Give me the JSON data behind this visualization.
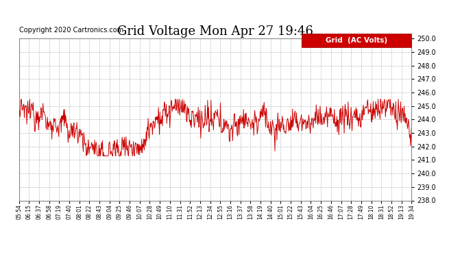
{
  "title": "Grid Voltage Mon Apr 27 19:46",
  "copyright": "Copyright 2020 Cartronics.com",
  "legend_label": "Grid  (AC Volts)",
  "line_color": "#cc0000",
  "ylim": [
    238.0,
    250.0
  ],
  "yticks": [
    238.0,
    239.0,
    240.0,
    241.0,
    242.0,
    243.0,
    244.0,
    245.0,
    246.0,
    247.0,
    248.0,
    249.0,
    250.0
  ],
  "xtick_labels": [
    "05:54",
    "06:15",
    "06:37",
    "06:58",
    "07:19",
    "07:40",
    "08:01",
    "08:22",
    "08:43",
    "09:04",
    "09:25",
    "09:46",
    "10:07",
    "10:28",
    "10:49",
    "11:10",
    "11:31",
    "11:52",
    "12:13",
    "12:34",
    "12:55",
    "13:16",
    "13:37",
    "13:58",
    "14:19",
    "14:40",
    "15:01",
    "15:22",
    "15:43",
    "16:04",
    "16:25",
    "16:46",
    "17:07",
    "17:28",
    "17:49",
    "18:10",
    "18:31",
    "18:52",
    "19:13",
    "19:34"
  ],
  "background_color": "#ffffff",
  "grid_color": "#bbbbbb",
  "title_fontsize": 13,
  "copyright_fontsize": 7,
  "legend_fontsize": 7.5,
  "n_points": 800,
  "seed": 12345
}
